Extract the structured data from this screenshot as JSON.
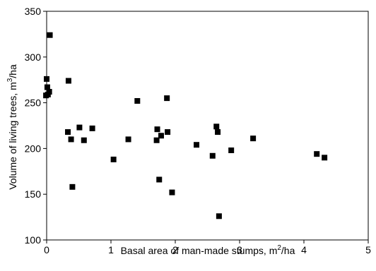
{
  "chart_data": {
    "type": "scatter",
    "title": "",
    "xlabel": {
      "pre": "Basal area of man-made stumps, m",
      "sup": "2",
      "post": "/ha"
    },
    "ylabel": {
      "pre": "Volume of living trees, m",
      "sup": "3",
      "post": "/ha"
    },
    "xlim": [
      0,
      5
    ],
    "ylim": [
      100,
      350
    ],
    "xticks": [
      0,
      1,
      2,
      3,
      4,
      5
    ],
    "yticks": [
      100,
      150,
      200,
      250,
      300,
      350
    ],
    "grid": false,
    "legend": "none",
    "marker": "square",
    "marker_color": "#000000",
    "points": [
      [
        0.05,
        324
      ],
      [
        0.0,
        276
      ],
      [
        0.01,
        267
      ],
      [
        0.04,
        262
      ],
      [
        -0.01,
        258
      ],
      [
        0.02,
        259
      ],
      [
        0.34,
        274
      ],
      [
        0.33,
        218
      ],
      [
        0.38,
        210
      ],
      [
        0.4,
        158
      ],
      [
        0.51,
        223
      ],
      [
        0.58,
        209
      ],
      [
        0.71,
        222
      ],
      [
        1.04,
        188
      ],
      [
        1.27,
        210
      ],
      [
        1.41,
        252
      ],
      [
        1.71,
        209
      ],
      [
        1.72,
        221
      ],
      [
        1.75,
        166
      ],
      [
        1.78,
        214
      ],
      [
        1.87,
        255
      ],
      [
        1.88,
        218
      ],
      [
        1.95,
        152
      ],
      [
        2.33,
        204
      ],
      [
        2.58,
        192
      ],
      [
        2.64,
        224
      ],
      [
        2.66,
        218
      ],
      [
        2.68,
        126
      ],
      [
        2.87,
        198
      ],
      [
        3.21,
        211
      ],
      [
        4.2,
        194
      ],
      [
        4.32,
        190
      ]
    ]
  }
}
